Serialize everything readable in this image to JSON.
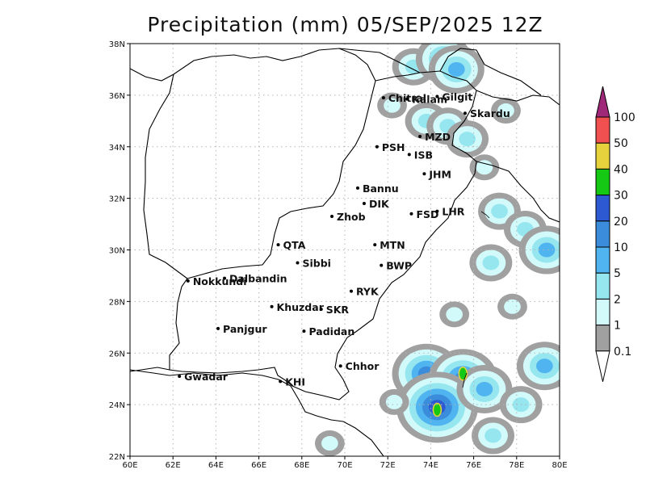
{
  "title": "Precipitation (mm) 05/SEP/2025 12Z",
  "map": {
    "lon_range": [
      60,
      80
    ],
    "lat_range": [
      22,
      38
    ],
    "lon_ticks": [
      "60E",
      "62E",
      "64E",
      "66E",
      "68E",
      "70E",
      "72E",
      "74E",
      "76E",
      "78E",
      "80E"
    ],
    "lat_ticks": [
      "22N",
      "24N",
      "26N",
      "28N",
      "30N",
      "32N",
      "34N",
      "36N",
      "38N"
    ],
    "grid": true
  },
  "cities": [
    {
      "name": "Chitral",
      "lon": 71.8,
      "lat": 35.9
    },
    {
      "name": "Gilgit",
      "lon": 74.3,
      "lat": 35.95
    },
    {
      "name": "Kalam",
      "lon": 72.9,
      "lat": 35.85
    },
    {
      "name": "Skardu",
      "lon": 75.6,
      "lat": 35.3
    },
    {
      "name": "MZD",
      "lon": 73.5,
      "lat": 34.4
    },
    {
      "name": "PSH",
      "lon": 71.5,
      "lat": 34.0
    },
    {
      "name": "ISB",
      "lon": 73.0,
      "lat": 33.7
    },
    {
      "name": "JHM",
      "lon": 73.7,
      "lat": 32.95
    },
    {
      "name": "Bannu",
      "lon": 70.6,
      "lat": 32.4
    },
    {
      "name": "DIK",
      "lon": 70.9,
      "lat": 31.8
    },
    {
      "name": "FSD",
      "lon": 73.1,
      "lat": 31.4
    },
    {
      "name": "LHR",
      "lon": 74.3,
      "lat": 31.5
    },
    {
      "name": "Zhob",
      "lon": 69.4,
      "lat": 31.3
    },
    {
      "name": "QTA",
      "lon": 66.9,
      "lat": 30.2
    },
    {
      "name": "MTN",
      "lon": 71.4,
      "lat": 30.2
    },
    {
      "name": "Sibbi",
      "lon": 67.8,
      "lat": 29.5
    },
    {
      "name": "BWP",
      "lon": 71.7,
      "lat": 29.4
    },
    {
      "name": "Dalbandin",
      "lon": 64.4,
      "lat": 28.9
    },
    {
      "name": "Nokkundi",
      "lon": 62.7,
      "lat": 28.8
    },
    {
      "name": "RYK",
      "lon": 70.3,
      "lat": 28.4
    },
    {
      "name": "Khuzdar",
      "lon": 66.6,
      "lat": 27.8
    },
    {
      "name": "SKR",
      "lon": 68.9,
      "lat": 27.7
    },
    {
      "name": "Panjgur",
      "lon": 64.1,
      "lat": 26.95
    },
    {
      "name": "Padidan",
      "lon": 68.1,
      "lat": 26.85
    },
    {
      "name": "Chhor",
      "lon": 69.8,
      "lat": 25.5
    },
    {
      "name": "Gwadar",
      "lon": 62.3,
      "lat": 25.1
    },
    {
      "name": "KHI",
      "lon": 67.0,
      "lat": 24.9
    }
  ],
  "colorbar": {
    "labels": [
      "0.1",
      "1",
      "2",
      "5",
      "10",
      "20",
      "30",
      "40",
      "50",
      "100"
    ],
    "colors": [
      "#a0a0a0",
      "#d2fafa",
      "#96e6f0",
      "#50b4f0",
      "#3c8cdc",
      "#2d5ad2",
      "#14c814",
      "#e6d23c",
      "#f05050",
      "#a02878"
    ]
  },
  "precip_cells": [
    {
      "lon": 73.2,
      "lat": 37.1,
      "level": 2
    },
    {
      "lon": 74.6,
      "lat": 37.4,
      "level": 3
    },
    {
      "lon": 75.2,
      "lat": 37.0,
      "level": 3
    },
    {
      "lon": 72.2,
      "lat": 35.6,
      "level": 1
    },
    {
      "lon": 73.8,
      "lat": 35.0,
      "level": 2
    },
    {
      "lon": 74.8,
      "lat": 34.8,
      "level": 2
    },
    {
      "lon": 77.5,
      "lat": 35.4,
      "level": 1
    },
    {
      "lon": 75.7,
      "lat": 34.3,
      "level": 2
    },
    {
      "lon": 76.5,
      "lat": 33.2,
      "level": 1
    },
    {
      "lon": 77.2,
      "lat": 31.5,
      "level": 2
    },
    {
      "lon": 78.4,
      "lat": 30.8,
      "level": 2
    },
    {
      "lon": 79.4,
      "lat": 30.0,
      "level": 3
    },
    {
      "lon": 76.8,
      "lat": 29.5,
      "level": 2
    },
    {
      "lon": 75.1,
      "lat": 27.5,
      "level": 1
    },
    {
      "lon": 77.8,
      "lat": 27.8,
      "level": 1
    },
    {
      "lon": 73.8,
      "lat": 25.2,
      "level": 4
    },
    {
      "lon": 75.5,
      "lat": 25.0,
      "level": 4
    },
    {
      "lon": 74.3,
      "lat": 23.9,
      "level": 5
    },
    {
      "lon": 76.5,
      "lat": 24.6,
      "level": 3
    },
    {
      "lon": 78.2,
      "lat": 24.0,
      "level": 2
    },
    {
      "lon": 79.3,
      "lat": 25.5,
      "level": 3
    },
    {
      "lon": 76.9,
      "lat": 22.8,
      "level": 2
    },
    {
      "lon": 72.3,
      "lat": 24.1,
      "level": 1
    },
    {
      "lon": 69.3,
      "lat": 22.5,
      "level": 1
    }
  ],
  "peak_cells": [
    {
      "lon": 75.5,
      "lat": 25.2,
      "level": 6
    },
    {
      "lon": 74.3,
      "lat": 23.8,
      "level": 6
    }
  ]
}
